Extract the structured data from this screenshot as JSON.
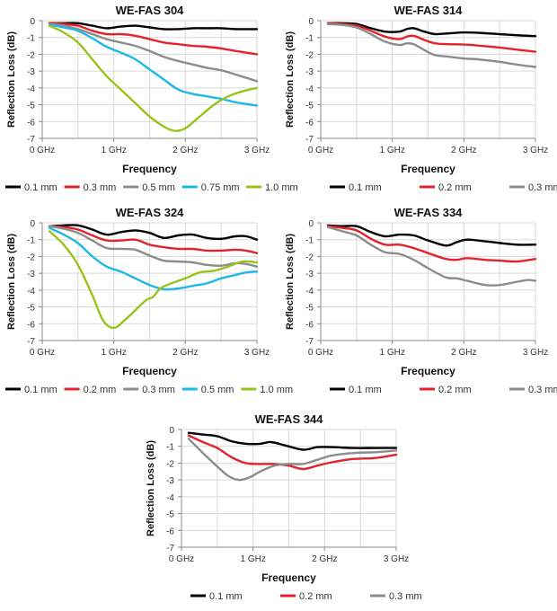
{
  "chart_data": [
    {
      "type": "line",
      "title": "WE-FAS 304",
      "xlabel": "Frequency",
      "ylabel": "Reflection Loss (dB)",
      "xlim": [
        0,
        3
      ],
      "ylim": [
        -7,
        0
      ],
      "x_ticks": [
        "0 GHz",
        "1 GHz",
        "2 GHz",
        "3 GHz"
      ],
      "y_ticks": [
        "0",
        "-1",
        "-2",
        "-3",
        "-4",
        "-5",
        "-6",
        "-7"
      ],
      "grid": true,
      "legend_position": "bottom",
      "legend_layout": "compact",
      "series": [
        {
          "name": "0.1 mm",
          "color": "#000000",
          "x": [
            0.1,
            0.3,
            0.5,
            0.7,
            0.9,
            1.1,
            1.3,
            1.5,
            1.7,
            1.9,
            2.1,
            2.3,
            2.5,
            2.7,
            3.0
          ],
          "y": [
            -0.15,
            -0.15,
            -0.15,
            -0.3,
            -0.45,
            -0.35,
            -0.3,
            -0.4,
            -0.5,
            -0.5,
            -0.45,
            -0.45,
            -0.45,
            -0.5,
            -0.5
          ]
        },
        {
          "name": "0.3 mm",
          "color": "#e3232c",
          "x": [
            0.1,
            0.3,
            0.5,
            0.7,
            0.9,
            1.1,
            1.3,
            1.5,
            1.7,
            1.9,
            2.1,
            2.3,
            2.5,
            2.7,
            3.0
          ],
          "y": [
            -0.15,
            -0.2,
            -0.3,
            -0.6,
            -0.8,
            -0.8,
            -0.9,
            -1.1,
            -1.3,
            -1.4,
            -1.5,
            -1.55,
            -1.65,
            -1.8,
            -2.0
          ]
        },
        {
          "name": "0.5 mm",
          "color": "#8c8c8c",
          "x": [
            0.1,
            0.3,
            0.5,
            0.7,
            0.9,
            1.1,
            1.3,
            1.5,
            1.7,
            1.9,
            2.1,
            2.3,
            2.5,
            2.7,
            3.0
          ],
          "y": [
            -0.2,
            -0.3,
            -0.5,
            -0.8,
            -1.1,
            -1.3,
            -1.5,
            -1.8,
            -2.15,
            -2.4,
            -2.6,
            -2.8,
            -2.95,
            -3.2,
            -3.6
          ]
        },
        {
          "name": "0.75 mm",
          "color": "#1eb8e6",
          "x": [
            0.1,
            0.3,
            0.5,
            0.7,
            0.9,
            1.1,
            1.3,
            1.5,
            1.7,
            1.9,
            2.1,
            2.3,
            2.5,
            2.7,
            3.0
          ],
          "y": [
            -0.25,
            -0.4,
            -0.6,
            -1.05,
            -1.55,
            -1.9,
            -2.3,
            -2.9,
            -3.5,
            -4.1,
            -4.35,
            -4.5,
            -4.65,
            -4.85,
            -5.05
          ]
        },
        {
          "name": "1.0 mm",
          "color": "#99c31c",
          "x": [
            0.1,
            0.3,
            0.5,
            0.7,
            0.9,
            1.1,
            1.3,
            1.5,
            1.7,
            1.85,
            2.0,
            2.2,
            2.4,
            2.6,
            2.8,
            3.0
          ],
          "y": [
            -0.3,
            -0.7,
            -1.3,
            -2.3,
            -3.3,
            -4.1,
            -4.9,
            -5.7,
            -6.3,
            -6.55,
            -6.4,
            -5.7,
            -5.0,
            -4.5,
            -4.2,
            -4.0
          ]
        }
      ]
    },
    {
      "type": "line",
      "title": "WE-FAS 314",
      "xlabel": "Frequency",
      "ylabel": "Reflection Loss (dB)",
      "xlim": [
        0,
        3
      ],
      "ylim": [
        -7,
        0
      ],
      "x_ticks": [
        "0 GHz",
        "1 GHz",
        "2 GHz",
        "3 GHz"
      ],
      "y_ticks": [
        "0",
        "-1",
        "-2",
        "-3",
        "-4",
        "-5",
        "-6",
        "-7"
      ],
      "grid": true,
      "legend_position": "bottom",
      "legend_layout": "spread",
      "series": [
        {
          "name": "0.1 mm",
          "color": "#000000",
          "x": [
            0.1,
            0.3,
            0.5,
            0.7,
            0.9,
            1.1,
            1.2,
            1.3,
            1.45,
            1.6,
            1.8,
            2.0,
            2.2,
            2.5,
            2.8,
            3.0
          ],
          "y": [
            -0.15,
            -0.15,
            -0.2,
            -0.45,
            -0.65,
            -0.65,
            -0.5,
            -0.45,
            -0.65,
            -0.8,
            -0.75,
            -0.7,
            -0.72,
            -0.8,
            -0.88,
            -0.92
          ]
        },
        {
          "name": "0.2 mm",
          "color": "#e3232c",
          "x": [
            0.1,
            0.3,
            0.5,
            0.7,
            0.9,
            1.1,
            1.2,
            1.3,
            1.45,
            1.6,
            1.8,
            2.0,
            2.2,
            2.5,
            2.8,
            3.0
          ],
          "y": [
            -0.15,
            -0.2,
            -0.3,
            -0.6,
            -0.95,
            -1.1,
            -0.95,
            -0.9,
            -1.15,
            -1.35,
            -1.4,
            -1.42,
            -1.48,
            -1.6,
            -1.75,
            -1.85
          ]
        },
        {
          "name": "0.3 mm",
          "color": "#8c8c8c",
          "x": [
            0.1,
            0.3,
            0.5,
            0.7,
            0.9,
            1.1,
            1.2,
            1.3,
            1.45,
            1.6,
            1.8,
            2.0,
            2.2,
            2.5,
            2.8,
            3.0
          ],
          "y": [
            -0.2,
            -0.25,
            -0.4,
            -0.8,
            -1.25,
            -1.45,
            -1.35,
            -1.4,
            -1.75,
            -2.05,
            -2.15,
            -2.25,
            -2.3,
            -2.45,
            -2.65,
            -2.75
          ]
        }
      ]
    },
    {
      "type": "line",
      "title": "WE-FAS 324",
      "xlabel": "Frequency",
      "ylabel": "Reflection Loss (dB)",
      "xlim": [
        0,
        3
      ],
      "ylim": [
        -7,
        0
      ],
      "x_ticks": [
        "0 GHz",
        "1 GHz",
        "2 GHz",
        "3 GHz"
      ],
      "y_ticks": [
        "0",
        "-1",
        "-2",
        "-3",
        "-4",
        "-5",
        "-6",
        "-7"
      ],
      "grid": true,
      "legend_position": "bottom",
      "legend_layout": "compact",
      "series": [
        {
          "name": "0.1 mm",
          "color": "#000000",
          "x": [
            0.1,
            0.3,
            0.5,
            0.7,
            0.9,
            1.1,
            1.3,
            1.5,
            1.7,
            1.9,
            2.1,
            2.3,
            2.5,
            2.7,
            2.85,
            3.0
          ],
          "y": [
            -0.2,
            -0.15,
            -0.15,
            -0.4,
            -0.7,
            -0.55,
            -0.45,
            -0.6,
            -0.9,
            -0.75,
            -0.7,
            -0.9,
            -0.95,
            -0.8,
            -0.8,
            -1.0
          ]
        },
        {
          "name": "0.2 mm",
          "color": "#e3232c",
          "x": [
            0.1,
            0.3,
            0.5,
            0.7,
            0.9,
            1.1,
            1.3,
            1.5,
            1.7,
            1.9,
            2.1,
            2.3,
            2.5,
            2.7,
            2.85,
            3.0
          ],
          "y": [
            -0.2,
            -0.25,
            -0.4,
            -0.75,
            -1.05,
            -1.05,
            -1.0,
            -1.3,
            -1.45,
            -1.55,
            -1.55,
            -1.65,
            -1.65,
            -1.6,
            -1.65,
            -1.8
          ]
        },
        {
          "name": "0.3 mm",
          "color": "#8c8c8c",
          "x": [
            0.1,
            0.3,
            0.5,
            0.7,
            0.9,
            1.1,
            1.3,
            1.5,
            1.7,
            1.9,
            2.1,
            2.3,
            2.5,
            2.7,
            2.85,
            3.0
          ],
          "y": [
            -0.2,
            -0.35,
            -0.6,
            -1.05,
            -1.5,
            -1.55,
            -1.6,
            -1.95,
            -2.25,
            -2.3,
            -2.35,
            -2.5,
            -2.55,
            -2.4,
            -2.45,
            -2.6
          ]
        },
        {
          "name": "0.5 mm",
          "color": "#1eb8e6",
          "x": [
            0.1,
            0.3,
            0.5,
            0.7,
            0.9,
            1.1,
            1.3,
            1.5,
            1.7,
            1.9,
            2.1,
            2.3,
            2.5,
            2.7,
            2.85,
            3.0
          ],
          "y": [
            -0.3,
            -0.7,
            -1.2,
            -2.0,
            -2.6,
            -2.9,
            -3.3,
            -3.7,
            -3.95,
            -3.9,
            -3.75,
            -3.6,
            -3.3,
            -3.1,
            -2.95,
            -2.9
          ]
        },
        {
          "name": "1.0 mm",
          "color": "#99c31c",
          "x": [
            0.1,
            0.3,
            0.5,
            0.7,
            0.85,
            1.0,
            1.15,
            1.3,
            1.45,
            1.55,
            1.65,
            1.8,
            2.0,
            2.2,
            2.4,
            2.6,
            2.8,
            3.0
          ],
          "y": [
            -0.5,
            -1.3,
            -2.5,
            -4.3,
            -5.8,
            -6.25,
            -5.8,
            -5.2,
            -4.6,
            -4.4,
            -3.9,
            -3.6,
            -3.3,
            -2.95,
            -2.85,
            -2.6,
            -2.3,
            -2.35
          ]
        }
      ]
    },
    {
      "type": "line",
      "title": "WE-FAS 334",
      "xlabel": "Frequency",
      "ylabel": "Reflection Loss (dB)",
      "xlim": [
        0,
        3
      ],
      "ylim": [
        -7,
        0
      ],
      "x_ticks": [
        "0 GHz",
        "1 GHz",
        "2 GHz",
        "3 GHz"
      ],
      "y_ticks": [
        "0",
        "-1",
        "-2",
        "-3",
        "-4",
        "-5",
        "-6",
        "-7"
      ],
      "grid": true,
      "legend_position": "bottom",
      "legend_layout": "spread",
      "series": [
        {
          "name": "0.1 mm",
          "color": "#000000",
          "x": [
            0.1,
            0.3,
            0.5,
            0.7,
            0.9,
            1.1,
            1.3,
            1.5,
            1.75,
            1.9,
            2.05,
            2.3,
            2.5,
            2.75,
            3.0
          ],
          "y": [
            -0.15,
            -0.2,
            -0.2,
            -0.55,
            -0.8,
            -0.7,
            -0.75,
            -1.05,
            -1.35,
            -1.15,
            -1.0,
            -1.1,
            -1.2,
            -1.3,
            -1.3
          ]
        },
        {
          "name": "0.2 mm",
          "color": "#e3232c",
          "x": [
            0.1,
            0.3,
            0.5,
            0.7,
            0.9,
            1.1,
            1.3,
            1.5,
            1.75,
            1.9,
            2.05,
            2.3,
            2.5,
            2.75,
            3.0
          ],
          "y": [
            -0.2,
            -0.3,
            -0.45,
            -0.95,
            -1.3,
            -1.3,
            -1.5,
            -1.8,
            -2.15,
            -2.2,
            -2.1,
            -2.2,
            -2.25,
            -2.3,
            -2.15
          ]
        },
        {
          "name": "0.3 mm",
          "color": "#8c8c8c",
          "x": [
            0.1,
            0.3,
            0.5,
            0.7,
            0.9,
            1.1,
            1.3,
            1.5,
            1.75,
            1.9,
            2.05,
            2.3,
            2.5,
            2.75,
            2.9,
            3.0
          ],
          "y": [
            -0.25,
            -0.5,
            -0.75,
            -1.3,
            -1.75,
            -1.85,
            -2.2,
            -2.7,
            -3.25,
            -3.3,
            -3.45,
            -3.7,
            -3.7,
            -3.5,
            -3.4,
            -3.45
          ]
        }
      ]
    },
    {
      "type": "line",
      "title": "WE-FAS 344",
      "xlabel": "Frequency",
      "ylabel": "Reflection Loss (dB)",
      "xlim": [
        0,
        3
      ],
      "ylim": [
        -7,
        0
      ],
      "x_ticks": [
        "0 GHz",
        "1 GHz",
        "2 GHz",
        "3 GHz"
      ],
      "y_ticks": [
        "0",
        "-1",
        "-2",
        "-3",
        "-4",
        "-5",
        "-6",
        "-7"
      ],
      "grid": true,
      "legend_position": "bottom",
      "legend_layout": "spread",
      "series": [
        {
          "name": "0.1 mm",
          "color": "#000000",
          "x": [
            0.1,
            0.3,
            0.5,
            0.7,
            0.9,
            1.1,
            1.25,
            1.45,
            1.7,
            1.9,
            2.1,
            2.4,
            2.7,
            3.0
          ],
          "y": [
            -0.2,
            -0.3,
            -0.4,
            -0.7,
            -0.85,
            -0.85,
            -0.75,
            -0.95,
            -1.2,
            -1.05,
            -1.05,
            -1.1,
            -1.1,
            -1.1
          ]
        },
        {
          "name": "0.2 mm",
          "color": "#e3232c",
          "x": [
            0.1,
            0.3,
            0.5,
            0.7,
            0.9,
            1.1,
            1.3,
            1.5,
            1.7,
            1.9,
            2.1,
            2.4,
            2.7,
            3.0
          ],
          "y": [
            -0.35,
            -0.75,
            -1.1,
            -1.65,
            -2.0,
            -2.05,
            -2.05,
            -2.15,
            -2.35,
            -2.15,
            -1.95,
            -1.75,
            -1.7,
            -1.5
          ]
        },
        {
          "name": "0.3 mm",
          "color": "#8c8c8c",
          "x": [
            0.1,
            0.3,
            0.5,
            0.65,
            0.8,
            0.95,
            1.1,
            1.3,
            1.5,
            1.7,
            1.9,
            2.1,
            2.4,
            2.7,
            3.0
          ],
          "y": [
            -0.55,
            -1.4,
            -2.2,
            -2.75,
            -3.0,
            -2.85,
            -2.5,
            -2.15,
            -2.05,
            -2.05,
            -1.8,
            -1.55,
            -1.4,
            -1.35,
            -1.25
          ]
        }
      ]
    }
  ]
}
